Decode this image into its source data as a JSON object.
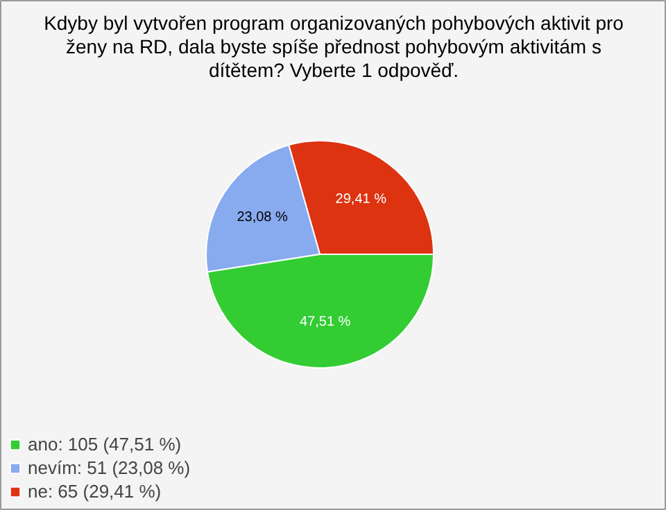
{
  "chart_data": {
    "type": "pie",
    "title": "Kdyby byl vytvořen program organizovaných pohybových aktivit pro\nženy na RD, dala byste spíše přednost pohybovým aktivitám s\ndítětem? Vyberte 1 odpověď.",
    "categories": [
      "ano: 105 (47,51 %)",
      "nevím: 51 (23,08 %)",
      "ne: 65 (29,41 %)"
    ],
    "values": [
      47.51,
      23.08,
      29.41
    ],
    "value_labels": [
      "47,51 %",
      "23,08 %",
      "29,41 %"
    ],
    "colors": [
      "#33cc33",
      "#88aaee",
      "#dd3311"
    ],
    "legend": "bottom left"
  }
}
